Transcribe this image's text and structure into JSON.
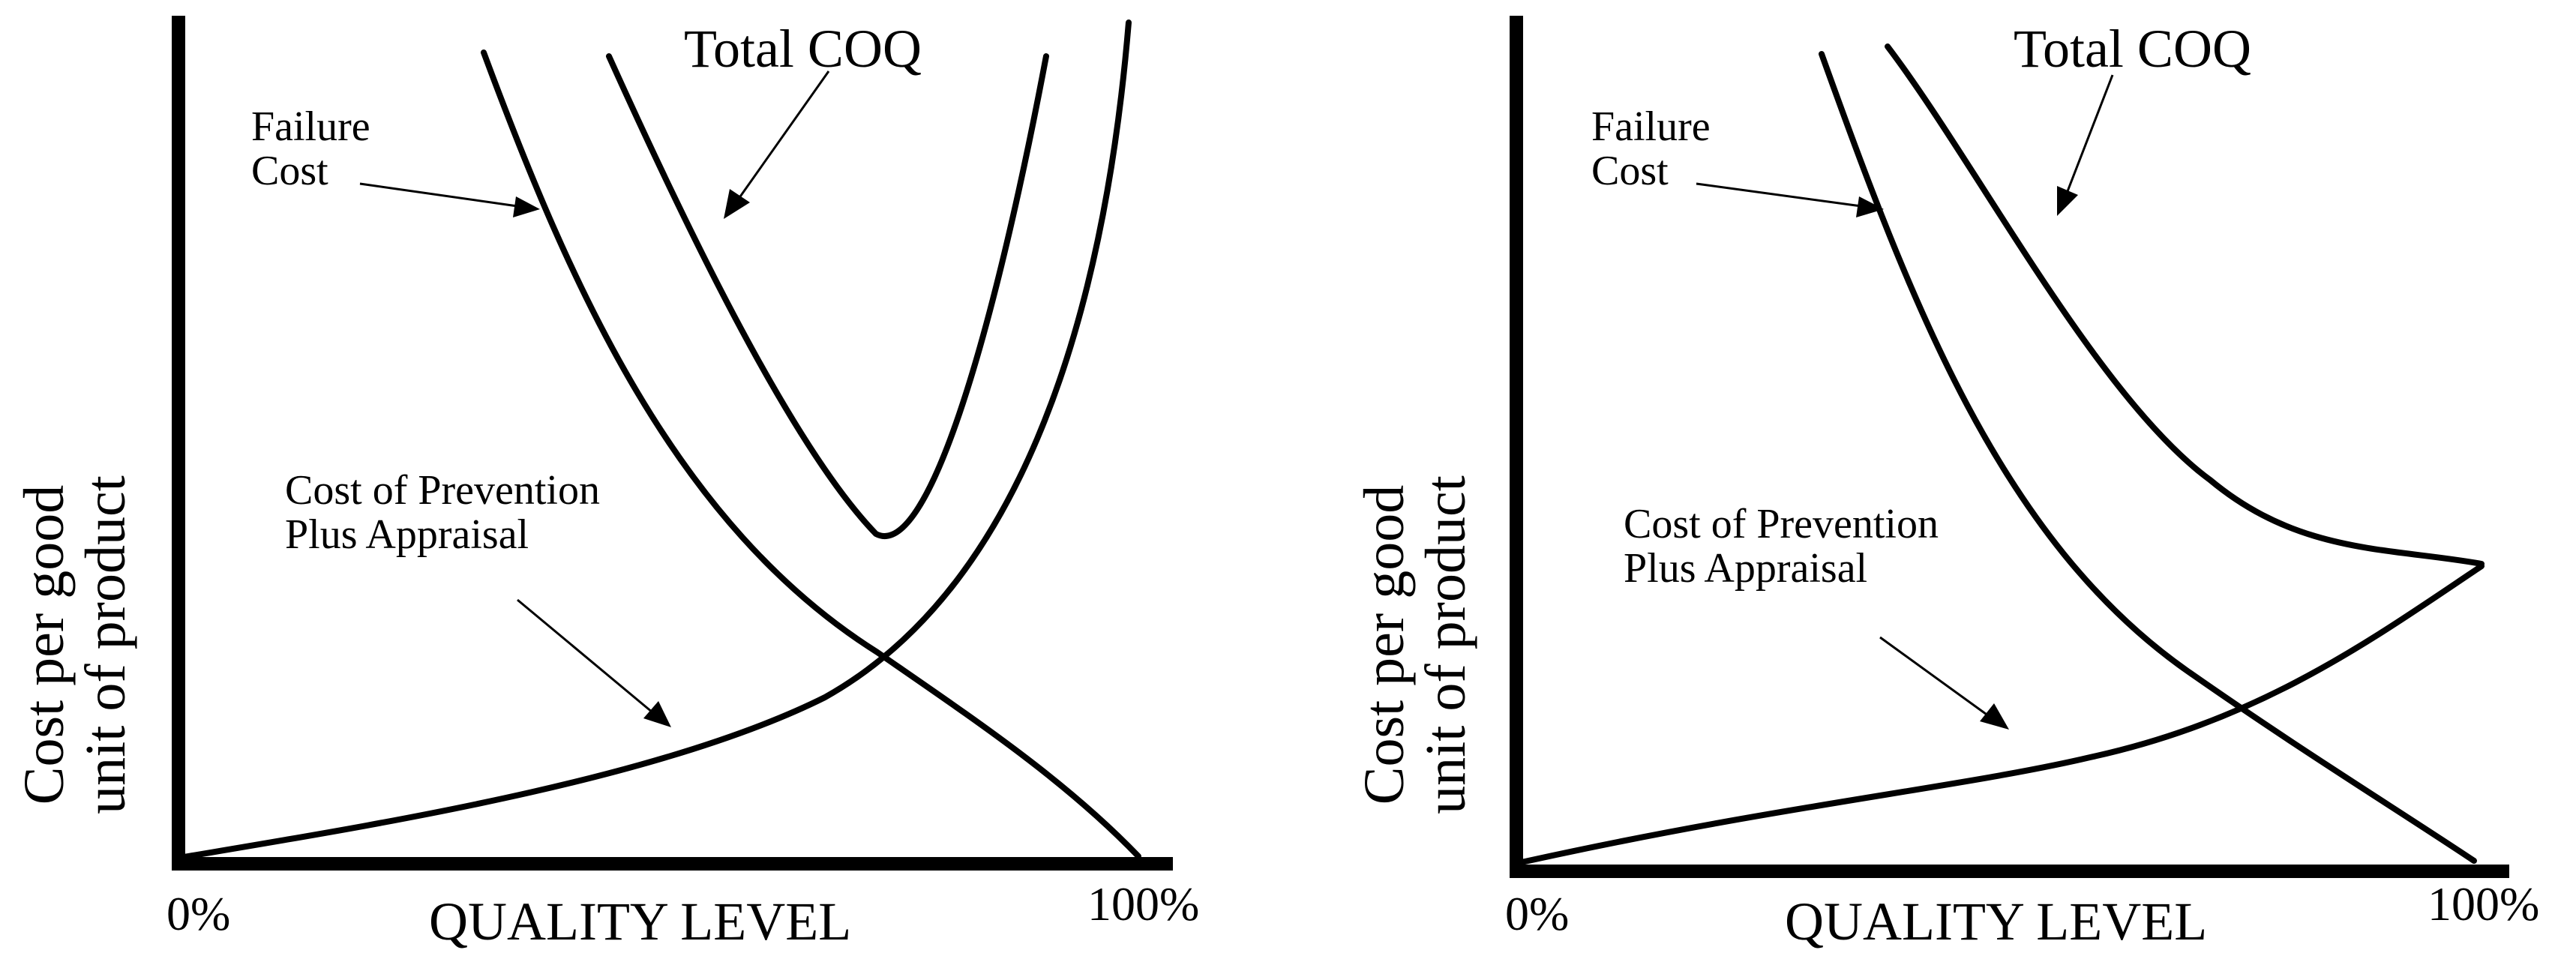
{
  "panels": [
    {
      "id": "left",
      "y_axis_label_line1": "Cost per good",
      "y_axis_label_line2": "unit of product",
      "x_axis_label": "QUALITY LEVEL",
      "x_tick_start": "0%",
      "x_tick_end": "100%",
      "labels": {
        "total_coq": "Total COQ",
        "failure_line1": "Failure",
        "failure_line2": "Cost",
        "prevention_line1": "Cost of Prevention",
        "prevention_line2": "Plus Appraisal"
      },
      "curves": [
        "Failure Cost",
        "Cost of Prevention Plus Appraisal",
        "Total COQ"
      ]
    },
    {
      "id": "right",
      "y_axis_label_line1": "Cost per good",
      "y_axis_label_line2": "unit of product",
      "x_axis_label": "QUALITY LEVEL",
      "x_tick_start": "0%",
      "x_tick_end": "100%",
      "labels": {
        "total_coq": "Total COQ",
        "failure_line1": "Failure",
        "failure_line2": "Cost",
        "prevention_line1": "Cost of Prevention",
        "prevention_line2": "Plus Appraisal"
      },
      "curves": [
        "Failure Cost",
        "Cost of Prevention Plus Appraisal",
        "Total COQ"
      ]
    }
  ]
}
